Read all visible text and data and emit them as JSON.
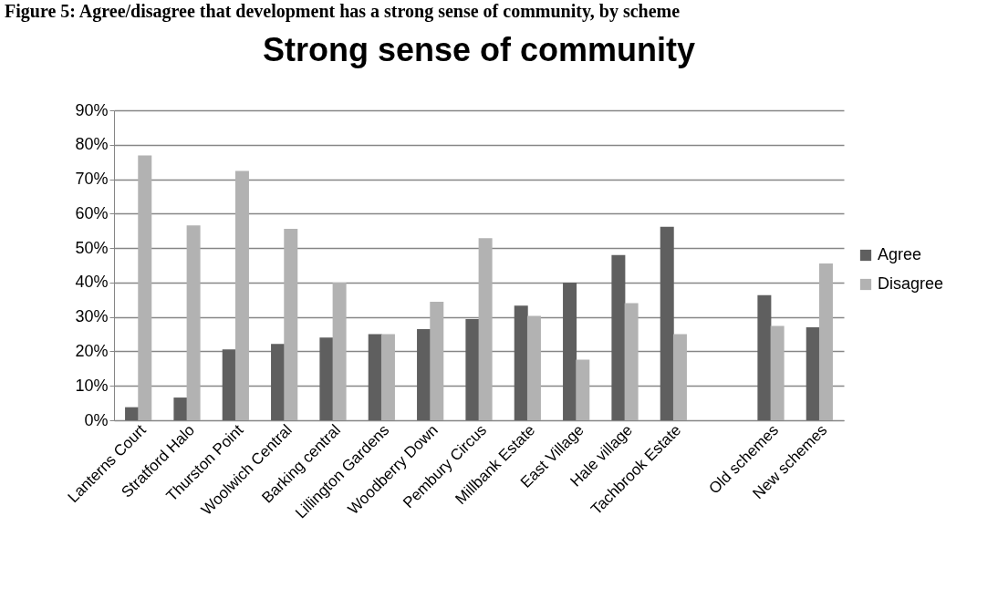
{
  "chart_data": {
    "type": "bar",
    "title": "Strong sense of community",
    "annotations": [
      "Figure 5: Agree/disagree that development has a strong sense of community, by scheme"
    ],
    "categories": [
      "Lanterns Court",
      "Stratford Halo",
      "Thurston Point",
      "Woolwich Central",
      "Barking central",
      "Lillington Gardens",
      "Woodberry Down",
      "Pembury Circus",
      "Millbank Estate",
      "East Village",
      "Hale village",
      "Tachbrook Estate",
      null,
      "Old schemes",
      "New schemes"
    ],
    "series": [
      {
        "name": "Agree",
        "color": "#5f5f5f",
        "values": [
          3.8,
          6.6,
          20.6,
          22.2,
          24.0,
          25.0,
          26.5,
          29.4,
          33.3,
          40.0,
          48.0,
          56.2,
          null,
          36.3,
          27.0
        ]
      },
      {
        "name": "Disagree",
        "color": "#b2b2b2",
        "values": [
          76.9,
          56.6,
          72.4,
          55.6,
          40.0,
          25.0,
          34.4,
          52.9,
          30.3,
          17.6,
          34.0,
          25.0,
          null,
          27.4,
          45.5
        ]
      }
    ],
    "ylim": [
      0,
      90
    ],
    "yticks": [
      {
        "value": 0,
        "label": "0%"
      },
      {
        "value": 10,
        "label": "10%"
      },
      {
        "value": 20,
        "label": "20%"
      },
      {
        "value": 30,
        "label": "30%"
      },
      {
        "value": 40,
        "label": "40%"
      },
      {
        "value": 50,
        "label": "50%"
      },
      {
        "value": 60,
        "label": "60%"
      },
      {
        "value": 70,
        "label": "70%"
      },
      {
        "value": 80,
        "label": "80%"
      },
      {
        "value": 90,
        "label": "90%"
      }
    ],
    "grid": "y",
    "legend": "right"
  }
}
